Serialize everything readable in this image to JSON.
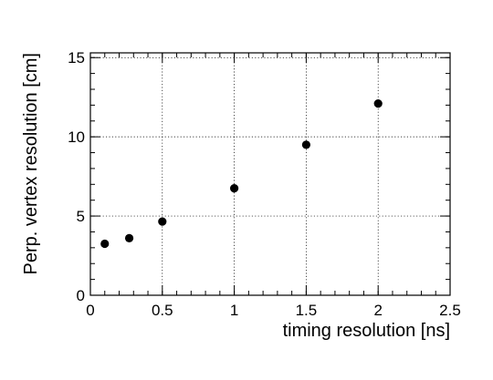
{
  "chart_data": {
    "type": "scatter",
    "title": "",
    "xlabel": "timing resolution [ns]",
    "ylabel": "Perp. vertex resolution [cm]",
    "xlim": [
      0,
      2.5
    ],
    "ylim": [
      0,
      15.3
    ],
    "grid": true,
    "x_major_ticks": [
      0,
      0.5,
      1,
      1.5,
      2,
      2.5
    ],
    "x_tick_labels": [
      "0",
      "0.5",
      "1",
      "1.5",
      "2",
      "2.5"
    ],
    "y_major_ticks": [
      0,
      5,
      10,
      15
    ],
    "y_tick_labels": [
      "0",
      "5",
      "10",
      "15"
    ],
    "series": [
      {
        "x": [
          0.1,
          0.27,
          0.5,
          1.0,
          1.5,
          2.0
        ],
        "y": [
          3.25,
          3.6,
          4.65,
          6.75,
          9.5,
          12.1
        ]
      }
    ],
    "marker_color": "#000000"
  }
}
